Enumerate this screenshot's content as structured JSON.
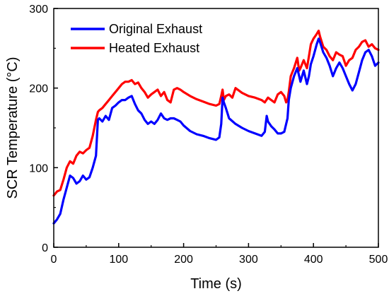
{
  "chart_data": {
    "type": "line",
    "title": "",
    "xlabel": "Time (s)",
    "ylabel": "SCR Temperature (°C)",
    "xlim": [
      0,
      500
    ],
    "ylim": [
      0,
      300
    ],
    "xticks": [
      0,
      100,
      200,
      300,
      400,
      500
    ],
    "yticks": [
      0,
      100,
      200,
      300
    ],
    "grid": false,
    "legend_position": "top-left",
    "series": [
      {
        "name": "Original Exhaust",
        "color": "#0000ff",
        "x": [
          0,
          5,
          10,
          15,
          20,
          25,
          30,
          35,
          40,
          45,
          50,
          55,
          60,
          65,
          68,
          70,
          75,
          80,
          85,
          90,
          95,
          100,
          105,
          110,
          115,
          120,
          125,
          130,
          135,
          140,
          145,
          150,
          155,
          160,
          165,
          170,
          175,
          180,
          185,
          190,
          195,
          200,
          210,
          220,
          230,
          240,
          250,
          255,
          258,
          260,
          262,
          265,
          270,
          280,
          290,
          300,
          310,
          320,
          325,
          328,
          330,
          335,
          340,
          345,
          350,
          355,
          358,
          360,
          362,
          365,
          370,
          375,
          378,
          380,
          385,
          390,
          393,
          396,
          400,
          405,
          408,
          410,
          415,
          420,
          425,
          430,
          435,
          440,
          445,
          450,
          455,
          460,
          465,
          470,
          475,
          480,
          485,
          490,
          495,
          500
        ],
        "values": [
          30,
          35,
          42,
          60,
          75,
          90,
          87,
          80,
          83,
          90,
          85,
          88,
          100,
          115,
          160,
          162,
          158,
          165,
          160,
          175,
          178,
          182,
          185,
          185,
          188,
          190,
          180,
          172,
          168,
          160,
          155,
          158,
          155,
          160,
          168,
          162,
          160,
          162,
          162,
          160,
          158,
          153,
          146,
          142,
          140,
          137,
          135,
          138,
          155,
          188,
          182,
          175,
          162,
          155,
          150,
          146,
          143,
          140,
          145,
          165,
          158,
          152,
          148,
          143,
          143,
          145,
          155,
          162,
          185,
          200,
          215,
          225,
          215,
          208,
          222,
          205,
          215,
          230,
          240,
          255,
          262,
          258,
          245,
          238,
          228,
          215,
          225,
          232,
          225,
          215,
          205,
          197,
          205,
          220,
          235,
          245,
          248,
          240,
          228,
          232
        ]
      },
      {
        "name": "Heated Exhaust",
        "color": "#ff0000",
        "x": [
          0,
          5,
          10,
          15,
          20,
          25,
          30,
          35,
          40,
          45,
          50,
          55,
          60,
          65,
          68,
          70,
          75,
          80,
          85,
          90,
          95,
          100,
          105,
          110,
          115,
          120,
          125,
          130,
          135,
          140,
          145,
          150,
          155,
          160,
          165,
          170,
          175,
          180,
          185,
          190,
          195,
          200,
          210,
          220,
          230,
          240,
          250,
          255,
          258,
          260,
          262,
          265,
          270,
          275,
          280,
          290,
          300,
          310,
          320,
          325,
          330,
          335,
          340,
          345,
          350,
          355,
          358,
          360,
          362,
          365,
          370,
          375,
          378,
          380,
          385,
          390,
          393,
          396,
          400,
          405,
          408,
          410,
          415,
          420,
          425,
          430,
          435,
          440,
          445,
          450,
          455,
          460,
          465,
          470,
          475,
          480,
          485,
          490,
          495,
          500
        ],
        "values": [
          65,
          70,
          72,
          85,
          100,
          108,
          105,
          115,
          120,
          118,
          122,
          125,
          140,
          160,
          170,
          172,
          175,
          180,
          185,
          190,
          195,
          200,
          205,
          208,
          208,
          210,
          205,
          207,
          200,
          195,
          188,
          192,
          195,
          198,
          190,
          195,
          185,
          182,
          198,
          200,
          198,
          195,
          190,
          186,
          183,
          180,
          178,
          180,
          190,
          198,
          185,
          190,
          192,
          188,
          200,
          194,
          190,
          188,
          185,
          182,
          188,
          185,
          182,
          192,
          195,
          190,
          182,
          185,
          195,
          215,
          225,
          238,
          222,
          225,
          235,
          225,
          240,
          255,
          262,
          268,
          272,
          265,
          252,
          248,
          240,
          235,
          245,
          242,
          240,
          228,
          235,
          238,
          248,
          252,
          258,
          260,
          252,
          255,
          250,
          248
        ]
      }
    ]
  }
}
